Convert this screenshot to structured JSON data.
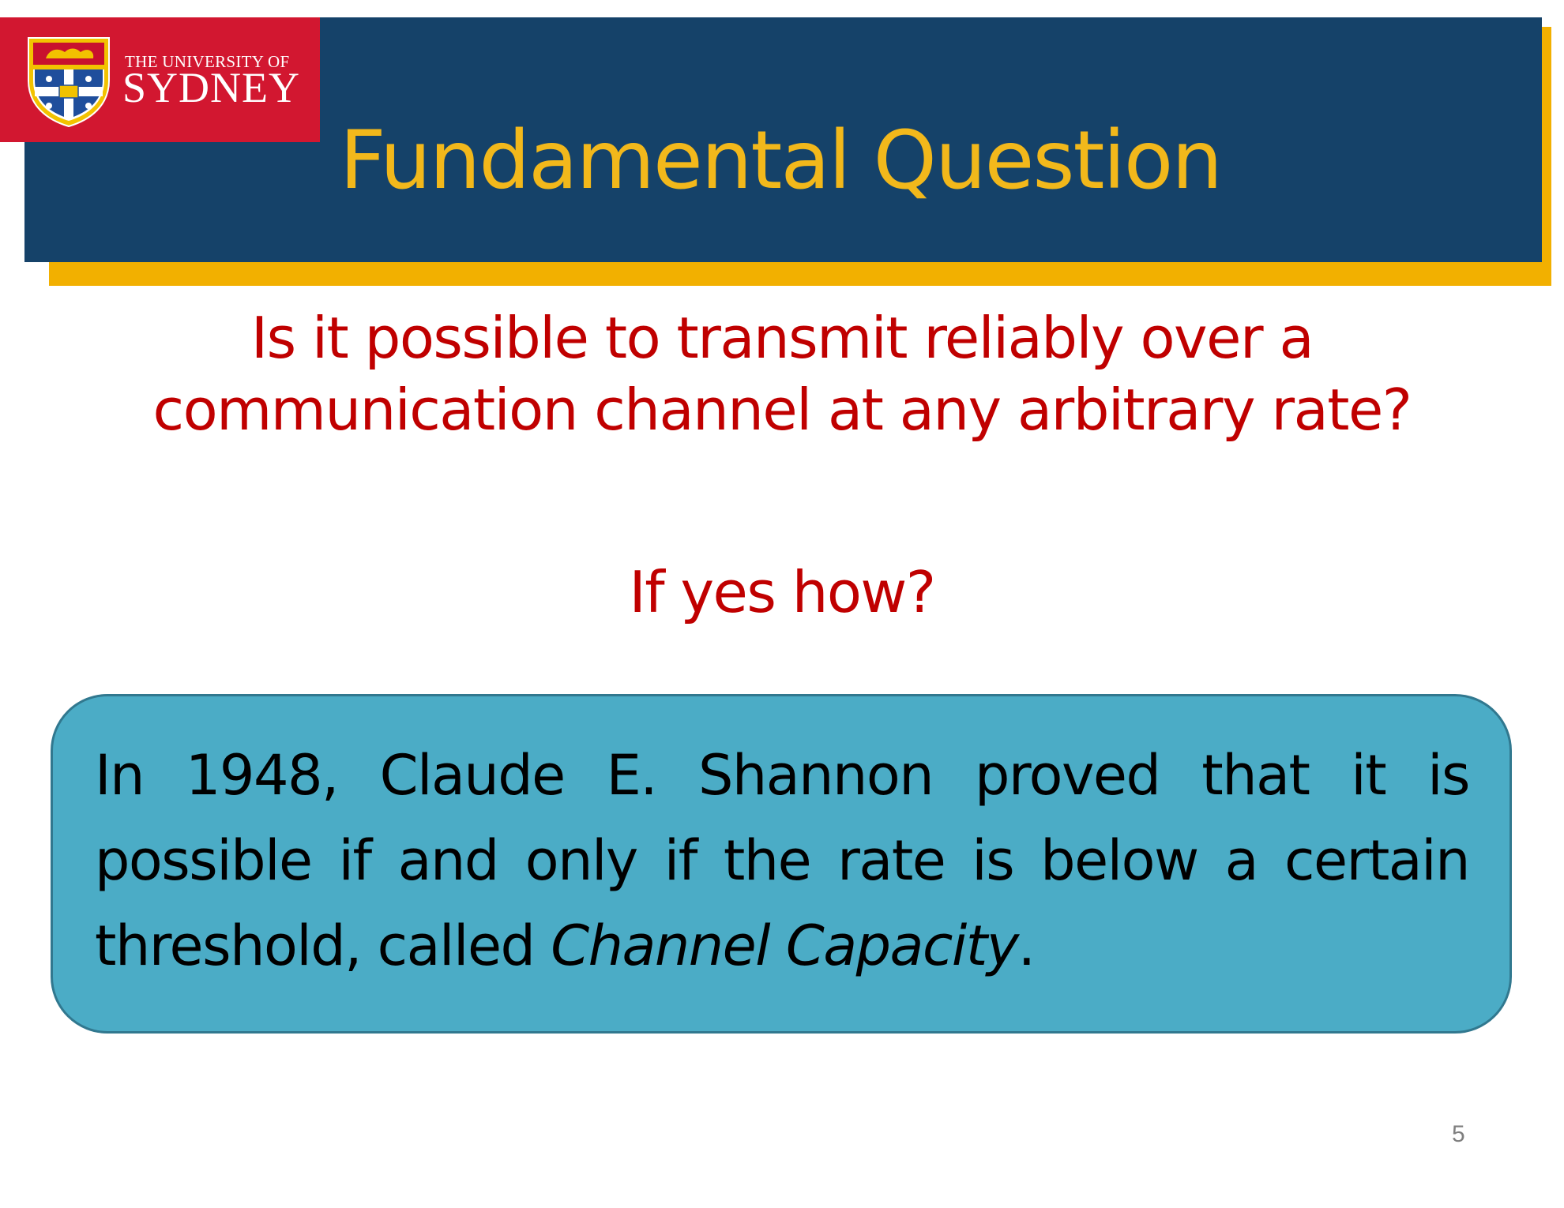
{
  "header": {
    "logo": {
      "line1": "THE UNIVERSITY OF",
      "line2": "SYDNEY"
    },
    "title": "Fundamental Question"
  },
  "body": {
    "question": "Is it possible to transmit reliably over a communication channel at any arbitrary rate?",
    "follow_up": "If yes how?"
  },
  "answer": {
    "text_before": "In 1948, Claude E. Shannon proved that it is possible if and only if the rate is below a certain threshold, called ",
    "emphasis": "Channel Capacity",
    "text_after": "."
  },
  "footer": {
    "page_number": "5"
  },
  "colors": {
    "header_blue": "#154269",
    "header_gold": "#f2b000",
    "logo_red": "#d21730",
    "title_gold": "#f2b81b",
    "question_red": "#c00000",
    "answer_box": "#4bacc6"
  }
}
